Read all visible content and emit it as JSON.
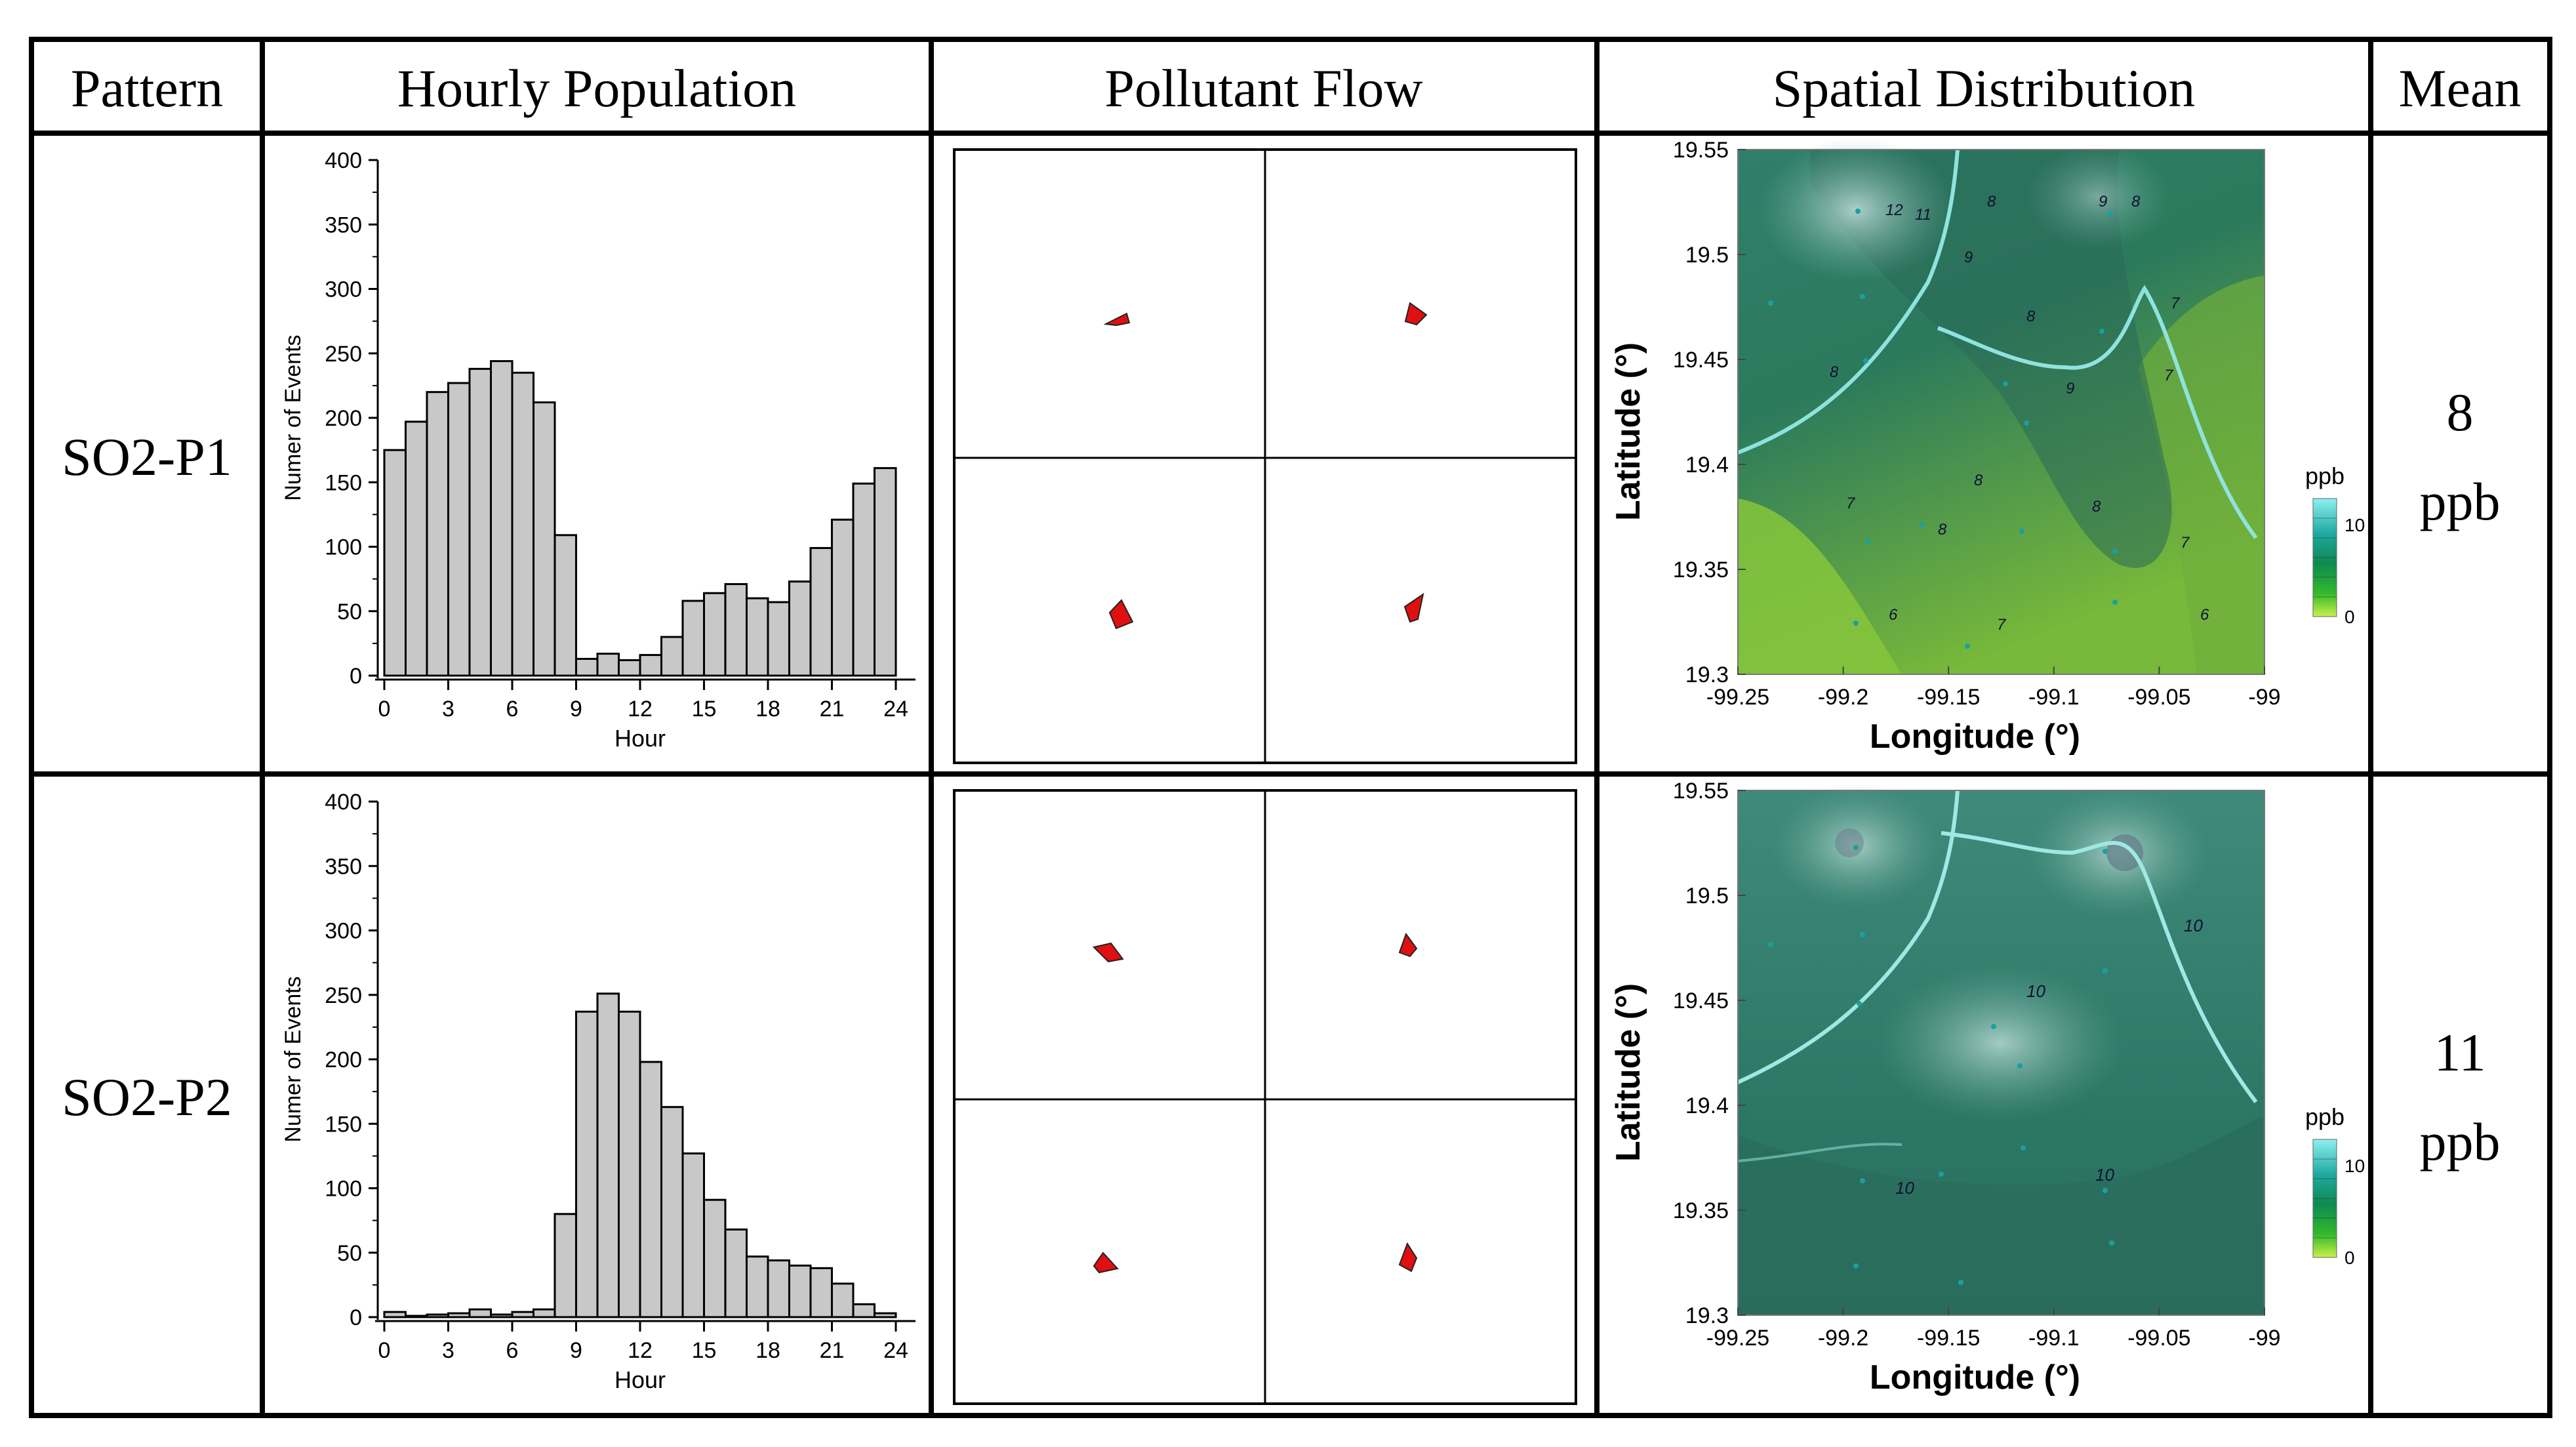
{
  "table": {
    "headers": [
      "Pattern",
      "Hourly Population",
      "Pollutant Flow",
      "Spatial Distribution",
      "Mean"
    ],
    "rows": [
      {
        "pattern": "SO2-P1",
        "mean_value": "8",
        "mean_unit": "ppb"
      },
      {
        "pattern": "SO2-P2",
        "mean_value": "11",
        "mean_unit": "ppb"
      }
    ]
  },
  "colors": {
    "bar_fill": "#c8c8c8",
    "arrow": "#e01010",
    "map_dark": "#1f6e5a",
    "map_light": "#8bd24a"
  },
  "chart_data": [
    {
      "type": "bar",
      "panel": "SO2-P1 hourly population",
      "xlabel": "Hour",
      "ylabel": "Numer of Events",
      "x": [
        0,
        1,
        2,
        3,
        4,
        5,
        6,
        7,
        8,
        9,
        10,
        11,
        12,
        13,
        14,
        15,
        16,
        17,
        18,
        19,
        20,
        21,
        22,
        23
      ],
      "values": [
        175,
        197,
        220,
        227,
        238,
        244,
        235,
        212,
        109,
        13,
        17,
        12,
        16,
        30,
        58,
        64,
        71,
        60,
        57,
        73,
        99,
        121,
        149,
        161
      ],
      "ylim": [
        0,
        400
      ],
      "yticks": [
        0,
        50,
        100,
        150,
        200,
        250,
        300,
        350,
        400
      ],
      "xticks": [
        0,
        3,
        6,
        9,
        12,
        15,
        18,
        21,
        24
      ]
    },
    {
      "type": "bar",
      "panel": "SO2-P2 hourly population",
      "xlabel": "Hour",
      "ylabel": "Numer of Events",
      "x": [
        0,
        1,
        2,
        3,
        4,
        5,
        6,
        7,
        8,
        9,
        10,
        11,
        12,
        13,
        14,
        15,
        16,
        17,
        18,
        19,
        20,
        21,
        22,
        23
      ],
      "values": [
        4,
        1,
        2,
        3,
        6,
        2,
        4,
        6,
        80,
        237,
        251,
        237,
        198,
        163,
        127,
        91,
        68,
        47,
        44,
        40,
        38,
        26,
        10,
        3
      ],
      "ylim": [
        0,
        400
      ],
      "yticks": [
        0,
        50,
        100,
        150,
        200,
        250,
        300,
        350,
        400
      ],
      "xticks": [
        0,
        3,
        6,
        9,
        12,
        15,
        18,
        21,
        24
      ]
    },
    {
      "type": "heatmap",
      "panel": "SO2-P1 spatial distribution",
      "xlabel": "Longitude (°)",
      "ylabel": "Latitude (°)",
      "xlim": [
        -99.25,
        -99
      ],
      "ylim": [
        19.3,
        19.55
      ],
      "xticks": [
        "-99.25",
        "-99.2",
        "-99.15",
        "-99.1",
        "-99.05",
        "-99"
      ],
      "yticks": [
        "19.3",
        "19.35",
        "19.4",
        "19.45",
        "19.5",
        "19.55"
      ],
      "colorbar": {
        "label": "ppb",
        "ticks": [
          "10",
          "0"
        ]
      },
      "contour_labels": [
        "12",
        "11",
        "9",
        "8",
        "8",
        "7",
        "9",
        "8",
        "8",
        "9",
        "7",
        "8",
        "8",
        "7",
        "7",
        "6",
        "7",
        "6",
        "8"
      ]
    },
    {
      "type": "heatmap",
      "panel": "SO2-P2 spatial distribution",
      "xlabel": "Longitude (°)",
      "ylabel": "Latitude (°)",
      "xlim": [
        -99.25,
        -99
      ],
      "ylim": [
        19.3,
        19.55
      ],
      "xticks": [
        "-99.25",
        "-99.2",
        "-99.15",
        "-99.1",
        "-99.05",
        "-99"
      ],
      "yticks": [
        "19.3",
        "19.35",
        "19.4",
        "19.45",
        "19.5",
        "19.55"
      ],
      "colorbar": {
        "label": "ppb",
        "ticks": [
          "10",
          "0"
        ]
      },
      "contour_labels": [
        "10",
        "10",
        "10",
        "10"
      ]
    }
  ]
}
